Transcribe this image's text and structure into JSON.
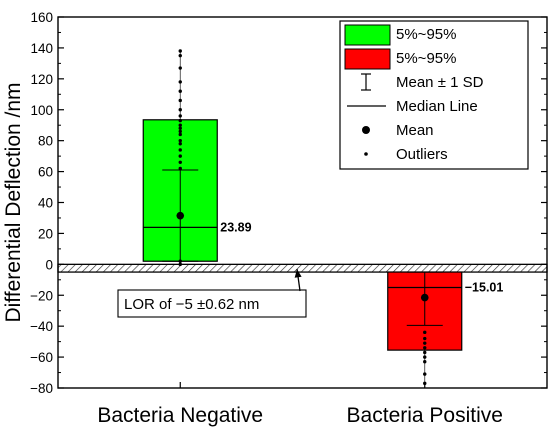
{
  "chart_data": {
    "type": "box",
    "title": "",
    "xlabel": "",
    "ylabel": "Differential Deflection /nm",
    "ylim": [
      -80,
      160
    ],
    "yticks": [
      160,
      140,
      120,
      100,
      80,
      60,
      40,
      20,
      0,
      -20,
      -40,
      -60,
      -80
    ],
    "grid": false,
    "legend_position": "top-right",
    "categories": [
      "Bacteria Negative",
      "Bacteria Positive"
    ],
    "boxes": [
      {
        "category": "Bacteria Negative",
        "color": "#00ff00",
        "q_low": 2,
        "q_high": 93.5,
        "median": 23.89,
        "median_label": "23.89",
        "mean": 31.5,
        "sd_low": 2,
        "sd_high": 61,
        "whisker_low": 0,
        "whisker_high": 138,
        "points": [
          138,
          135,
          127,
          118,
          112,
          106,
          100,
          96,
          93,
          90,
          88,
          86,
          84,
          80,
          78,
          74,
          70,
          66,
          62,
          2,
          0
        ]
      },
      {
        "category": "Bacteria Positive",
        "color": "#ff0000",
        "q_low": -55.5,
        "q_high": -5,
        "median": -15.01,
        "median_label": "−15.01",
        "mean": -21.5,
        "sd_low": -39.5,
        "sd_high": -5,
        "whisker_low": -77,
        "whisker_high": -5,
        "points": [
          -44,
          -48,
          -51,
          -54,
          -57,
          -60,
          -63,
          -71,
          -77
        ]
      }
    ],
    "lor_band": {
      "low": -5,
      "high": 0
    },
    "annotation": "LOR of −5 ±0.62 nm",
    "legend": [
      {
        "label": "5%~95%",
        "kind": "box",
        "color": "#00ff00"
      },
      {
        "label": "5%~95%",
        "kind": "box",
        "color": "#ff0000"
      },
      {
        "label": "Mean ± 1 SD",
        "kind": "errorbar"
      },
      {
        "label": "Median Line",
        "kind": "line"
      },
      {
        "label": "Mean",
        "kind": "bigdot"
      },
      {
        "label": "Outliers",
        "kind": "smalldot"
      }
    ]
  }
}
